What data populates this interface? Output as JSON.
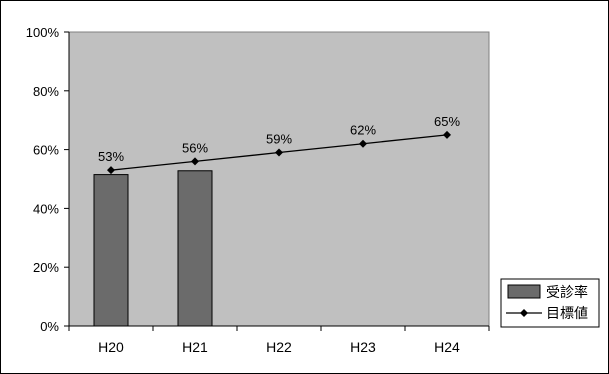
{
  "chart_data": {
    "type": "bar",
    "categories": [
      "H20",
      "H21",
      "H22",
      "H23",
      "H24"
    ],
    "series": [
      {
        "name": "受診率",
        "type": "bar",
        "values": [
          51.5,
          52.8,
          null,
          null,
          null
        ],
        "color": "#6b6b6b"
      },
      {
        "name": "目標値",
        "type": "line",
        "marker": "diamond",
        "values": [
          53,
          56,
          59,
          62,
          65
        ],
        "color": "#000000",
        "labels": [
          "53%",
          "56%",
          "59%",
          "62%",
          "65%"
        ]
      }
    ],
    "ylim": [
      0,
      100
    ],
    "yticks": [
      0,
      20,
      40,
      60,
      80,
      100
    ],
    "ytick_labels": [
      "0%",
      "20%",
      "40%",
      "60%",
      "80%",
      "100%"
    ],
    "plot_background": "#c0c0c0",
    "grid": false,
    "legend_position": "right"
  }
}
